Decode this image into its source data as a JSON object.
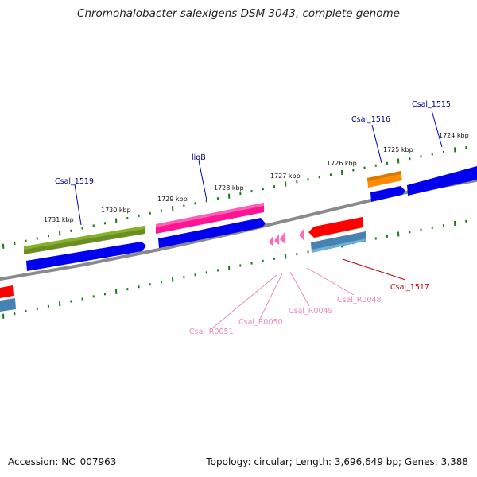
{
  "title": "Chromohalobacter salexigens DSM 3043, complete genome",
  "footer": {
    "accession": "Accession: NC_007963",
    "topology": "Topology: circular; Length: 3,696,649 bp; Genes: 3,388"
  },
  "scale": {
    "tick_labels": [
      "1724 kbp",
      "1725 kbp",
      "1726 kbp",
      "1727 kbp",
      "1728 kbp",
      "1729 kbp",
      "1730 kbp",
      "1731 kbp"
    ]
  },
  "genes": [
    {
      "name": "Csal_1515",
      "color": "#00008b"
    },
    {
      "name": "Csal_1516",
      "color": "#00008b"
    },
    {
      "name": "ligB",
      "color": "#00008b"
    },
    {
      "name": "Csal_1519",
      "color": "#00008b"
    },
    {
      "name": "Csal_1517",
      "color": "#cc0000"
    },
    {
      "name": "Csal_R0048",
      "color": "#ee88bb"
    },
    {
      "name": "Csal_R0049",
      "color": "#ee88bb"
    },
    {
      "name": "Csal_R0050",
      "color": "#ee88bb"
    },
    {
      "name": "Csal_R0051",
      "color": "#ee88bb"
    }
  ],
  "feature_colors": {
    "backbone": "#808080",
    "ticks": "#1a7a1a",
    "cds_forward": "#0000ee",
    "cds_reverse": "#4682b4",
    "gene_olive": "#6b8e23",
    "gene_pink": "#ff1493",
    "gene_orange": "#ff8c00",
    "gene_red": "#ff0000",
    "trna": "#ff69b4"
  }
}
